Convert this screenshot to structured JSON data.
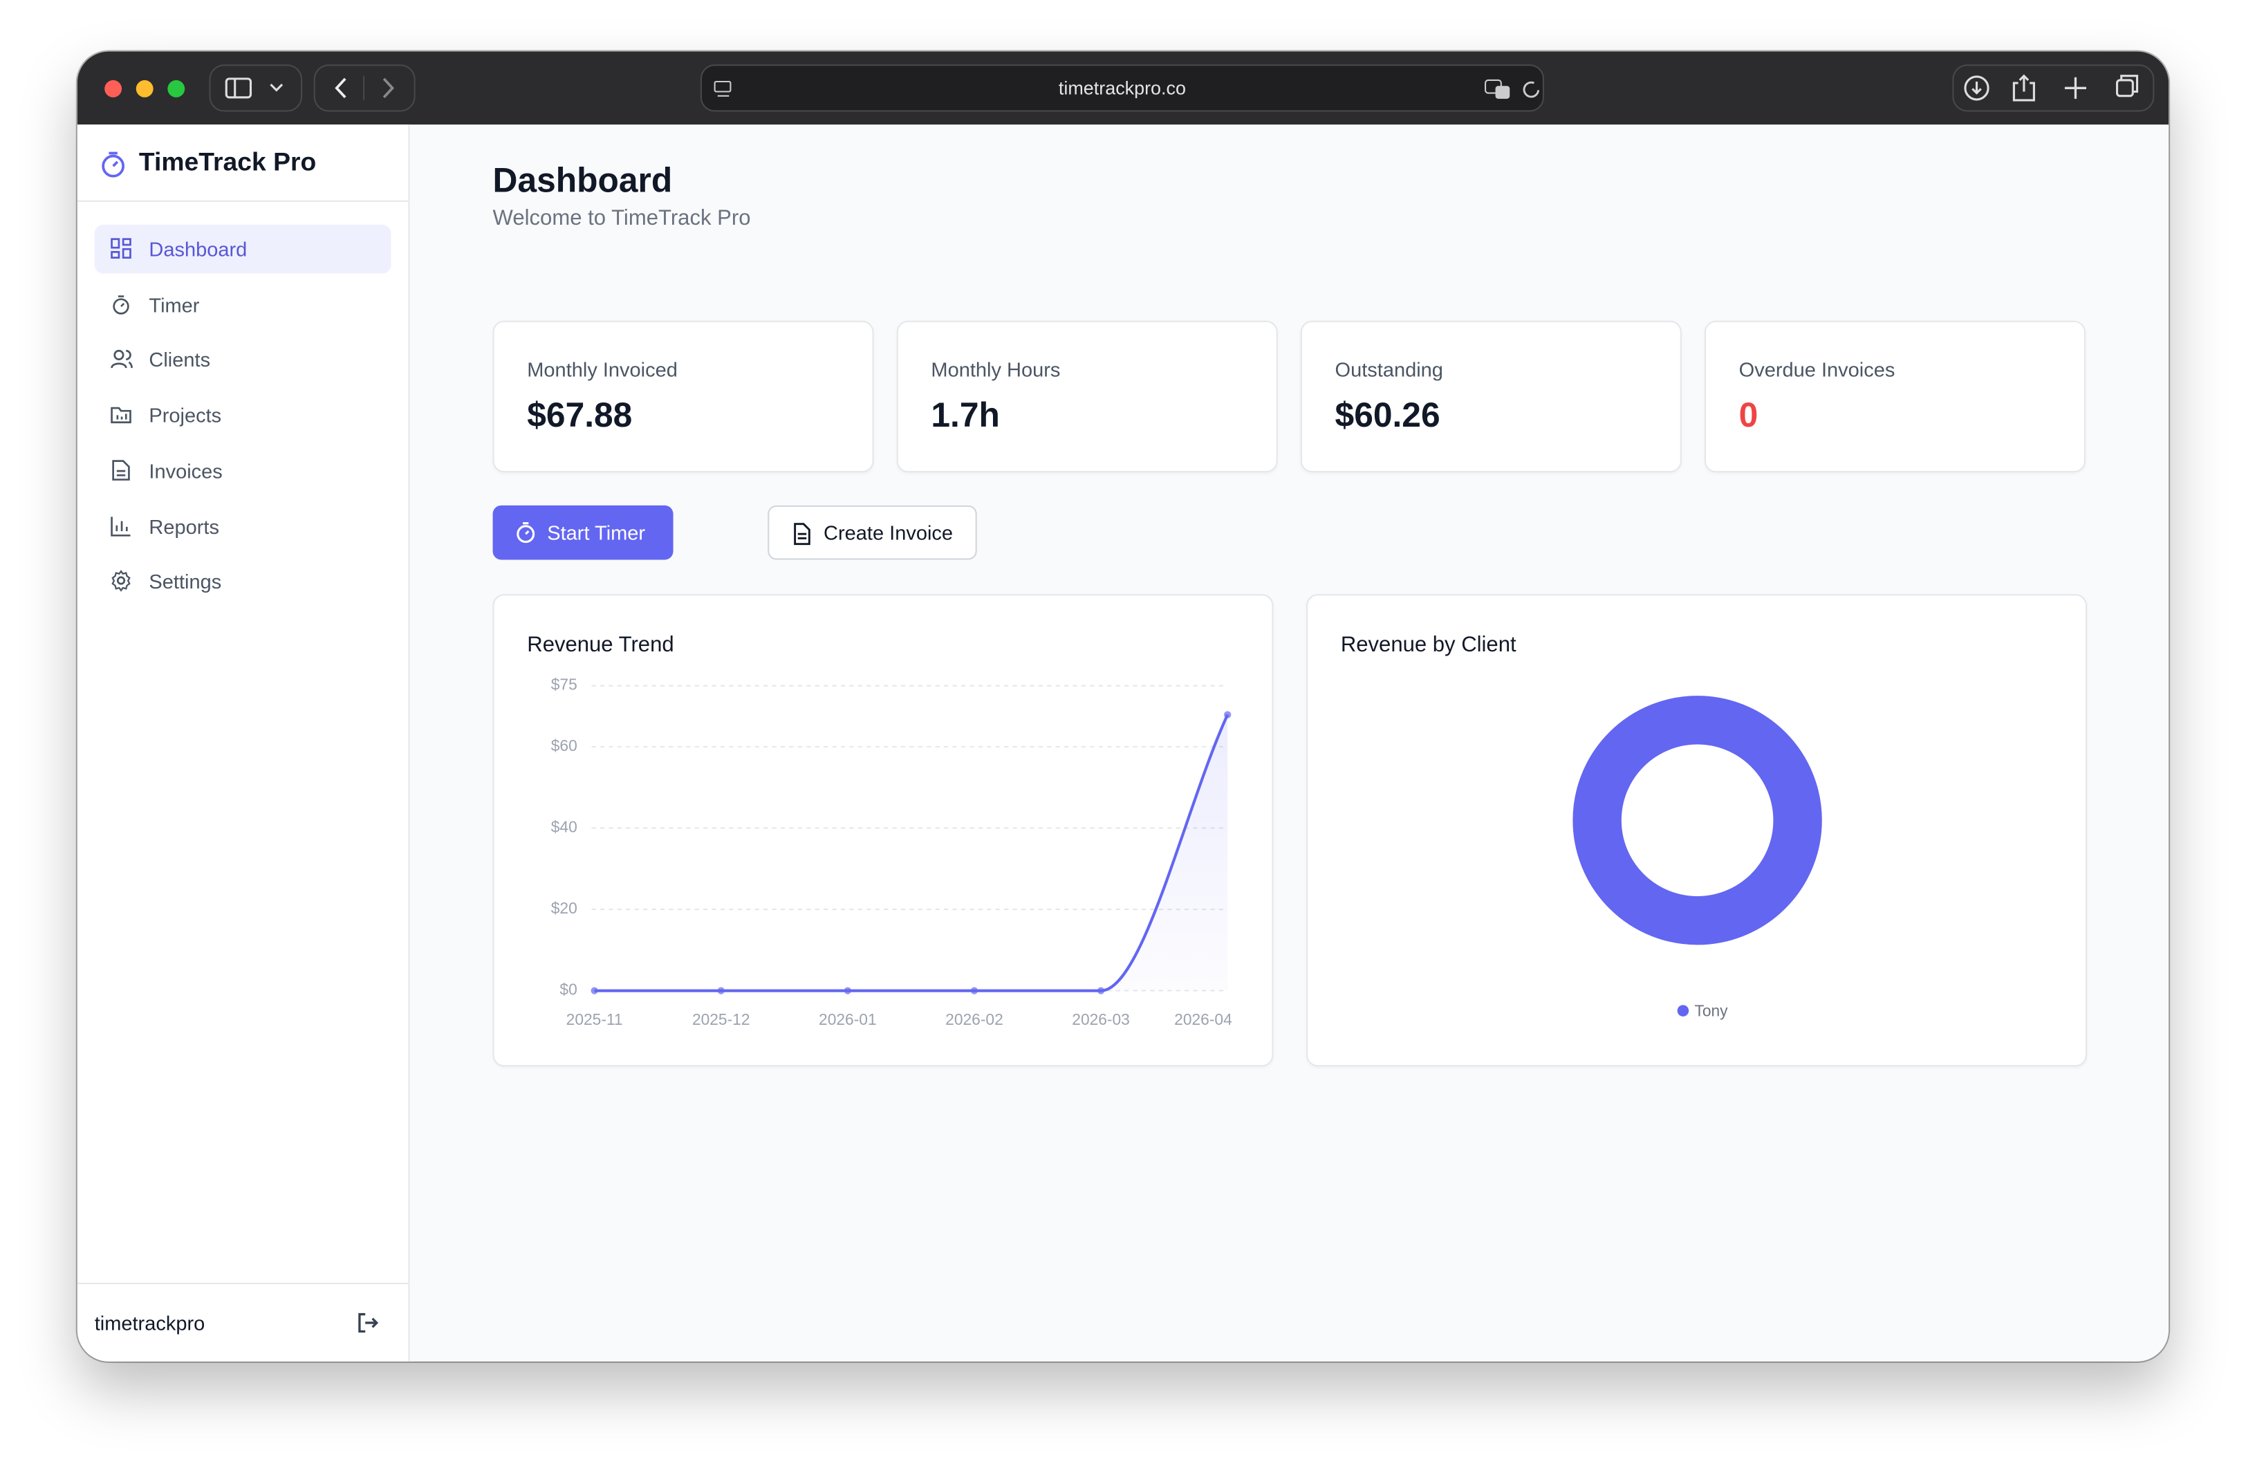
{
  "browser": {
    "url": "timetrackpro.co"
  },
  "sidebar": {
    "brand": "TimeTrack Pro",
    "nav": [
      "Dashboard",
      "Timer",
      "Clients",
      "Projects",
      "Invoices",
      "Reports",
      "Settings"
    ],
    "user": "timetrackpro"
  },
  "header": {
    "title": "Dashboard",
    "subtitle": "Welcome to TimeTrack Pro"
  },
  "stats": [
    {
      "label": "Monthly Invoiced",
      "value": "$67.88"
    },
    {
      "label": "Monthly Hours",
      "value": "1.7h"
    },
    {
      "label": "Outstanding",
      "value": "$60.26"
    },
    {
      "label": "Overdue Invoices",
      "value": "0"
    }
  ],
  "buttons": [
    "Start Timer",
    "Create Invoice"
  ],
  "chart_data": [
    {
      "type": "line",
      "title": "Revenue Trend",
      "categories": [
        "2025-11",
        "2025-12",
        "2026-01",
        "2026-02",
        "2026-03",
        "2026-04"
      ],
      "values": [
        0,
        0,
        0,
        0,
        0,
        67.88
      ],
      "color": "#6366f1",
      "ylim": [
        0,
        75
      ],
      "yticks": [
        {
          "value": 0,
          "label": "$0"
        },
        {
          "value": 20,
          "label": "$20"
        },
        {
          "value": 40,
          "label": "$40"
        },
        {
          "value": 60,
          "label": "$60"
        },
        {
          "value": 75,
          "label": "$75"
        }
      ],
      "grid": true
    },
    {
      "type": "donut",
      "title": "Revenue by Client",
      "categories": [
        "Tony"
      ],
      "values": [
        100
      ],
      "colors": [
        "#6366f1"
      ]
    }
  ]
}
